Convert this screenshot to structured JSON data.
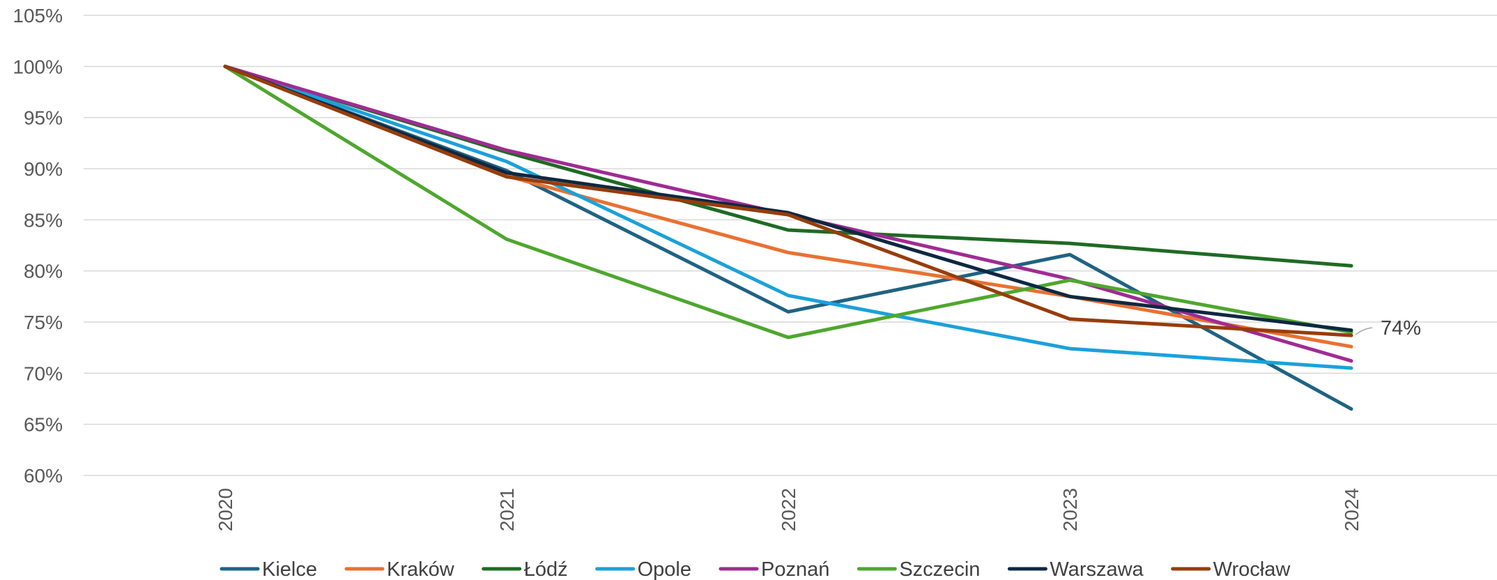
{
  "chart_data": {
    "type": "line",
    "title": "",
    "xlabel": "",
    "ylabel": "",
    "categories": [
      "2020",
      "2021",
      "2022",
      "2023",
      "2024"
    ],
    "ylim": [
      0.6,
      1.05
    ],
    "yticks": [
      0.6,
      0.65,
      0.7,
      0.75,
      0.8,
      0.85,
      0.9,
      0.95,
      1.0,
      1.05
    ],
    "ytick_labels": [
      "60%",
      "65%",
      "70%",
      "75%",
      "80%",
      "85%",
      "90%",
      "95%",
      "100%",
      "105%"
    ],
    "grid": true,
    "legend_position": "bottom",
    "series": [
      {
        "name": "Kielce",
        "color": "#1F6382",
        "values": [
          1.0,
          0.898,
          0.76,
          0.816,
          0.665
        ]
      },
      {
        "name": "Kraków",
        "color": "#E97132",
        "values": [
          1.0,
          0.893,
          0.818,
          0.775,
          0.726
        ]
      },
      {
        "name": "Łódź",
        "color": "#1E6B24",
        "values": [
          1.0,
          0.916,
          0.84,
          0.827,
          0.805
        ]
      },
      {
        "name": "Opole",
        "color": "#1BA1DB",
        "values": [
          1.0,
          0.907,
          0.776,
          0.724,
          0.705
        ]
      },
      {
        "name": "Poznań",
        "color": "#A02B93",
        "values": [
          1.0,
          0.918,
          0.855,
          0.792,
          0.712
        ]
      },
      {
        "name": "Szczecin",
        "color": "#4EA72E",
        "values": [
          1.0,
          0.831,
          0.735,
          0.791,
          0.74
        ]
      },
      {
        "name": "Warszawa",
        "color": "#0E2841",
        "values": [
          1.0,
          0.896,
          0.857,
          0.775,
          0.742
        ]
      },
      {
        "name": "Wrocław",
        "color": "#973D0A",
        "values": [
          1.0,
          0.892,
          0.855,
          0.753,
          0.737
        ]
      }
    ],
    "annotations": [
      {
        "text": "74%",
        "series": "Wrocław",
        "category": "2024"
      }
    ]
  }
}
